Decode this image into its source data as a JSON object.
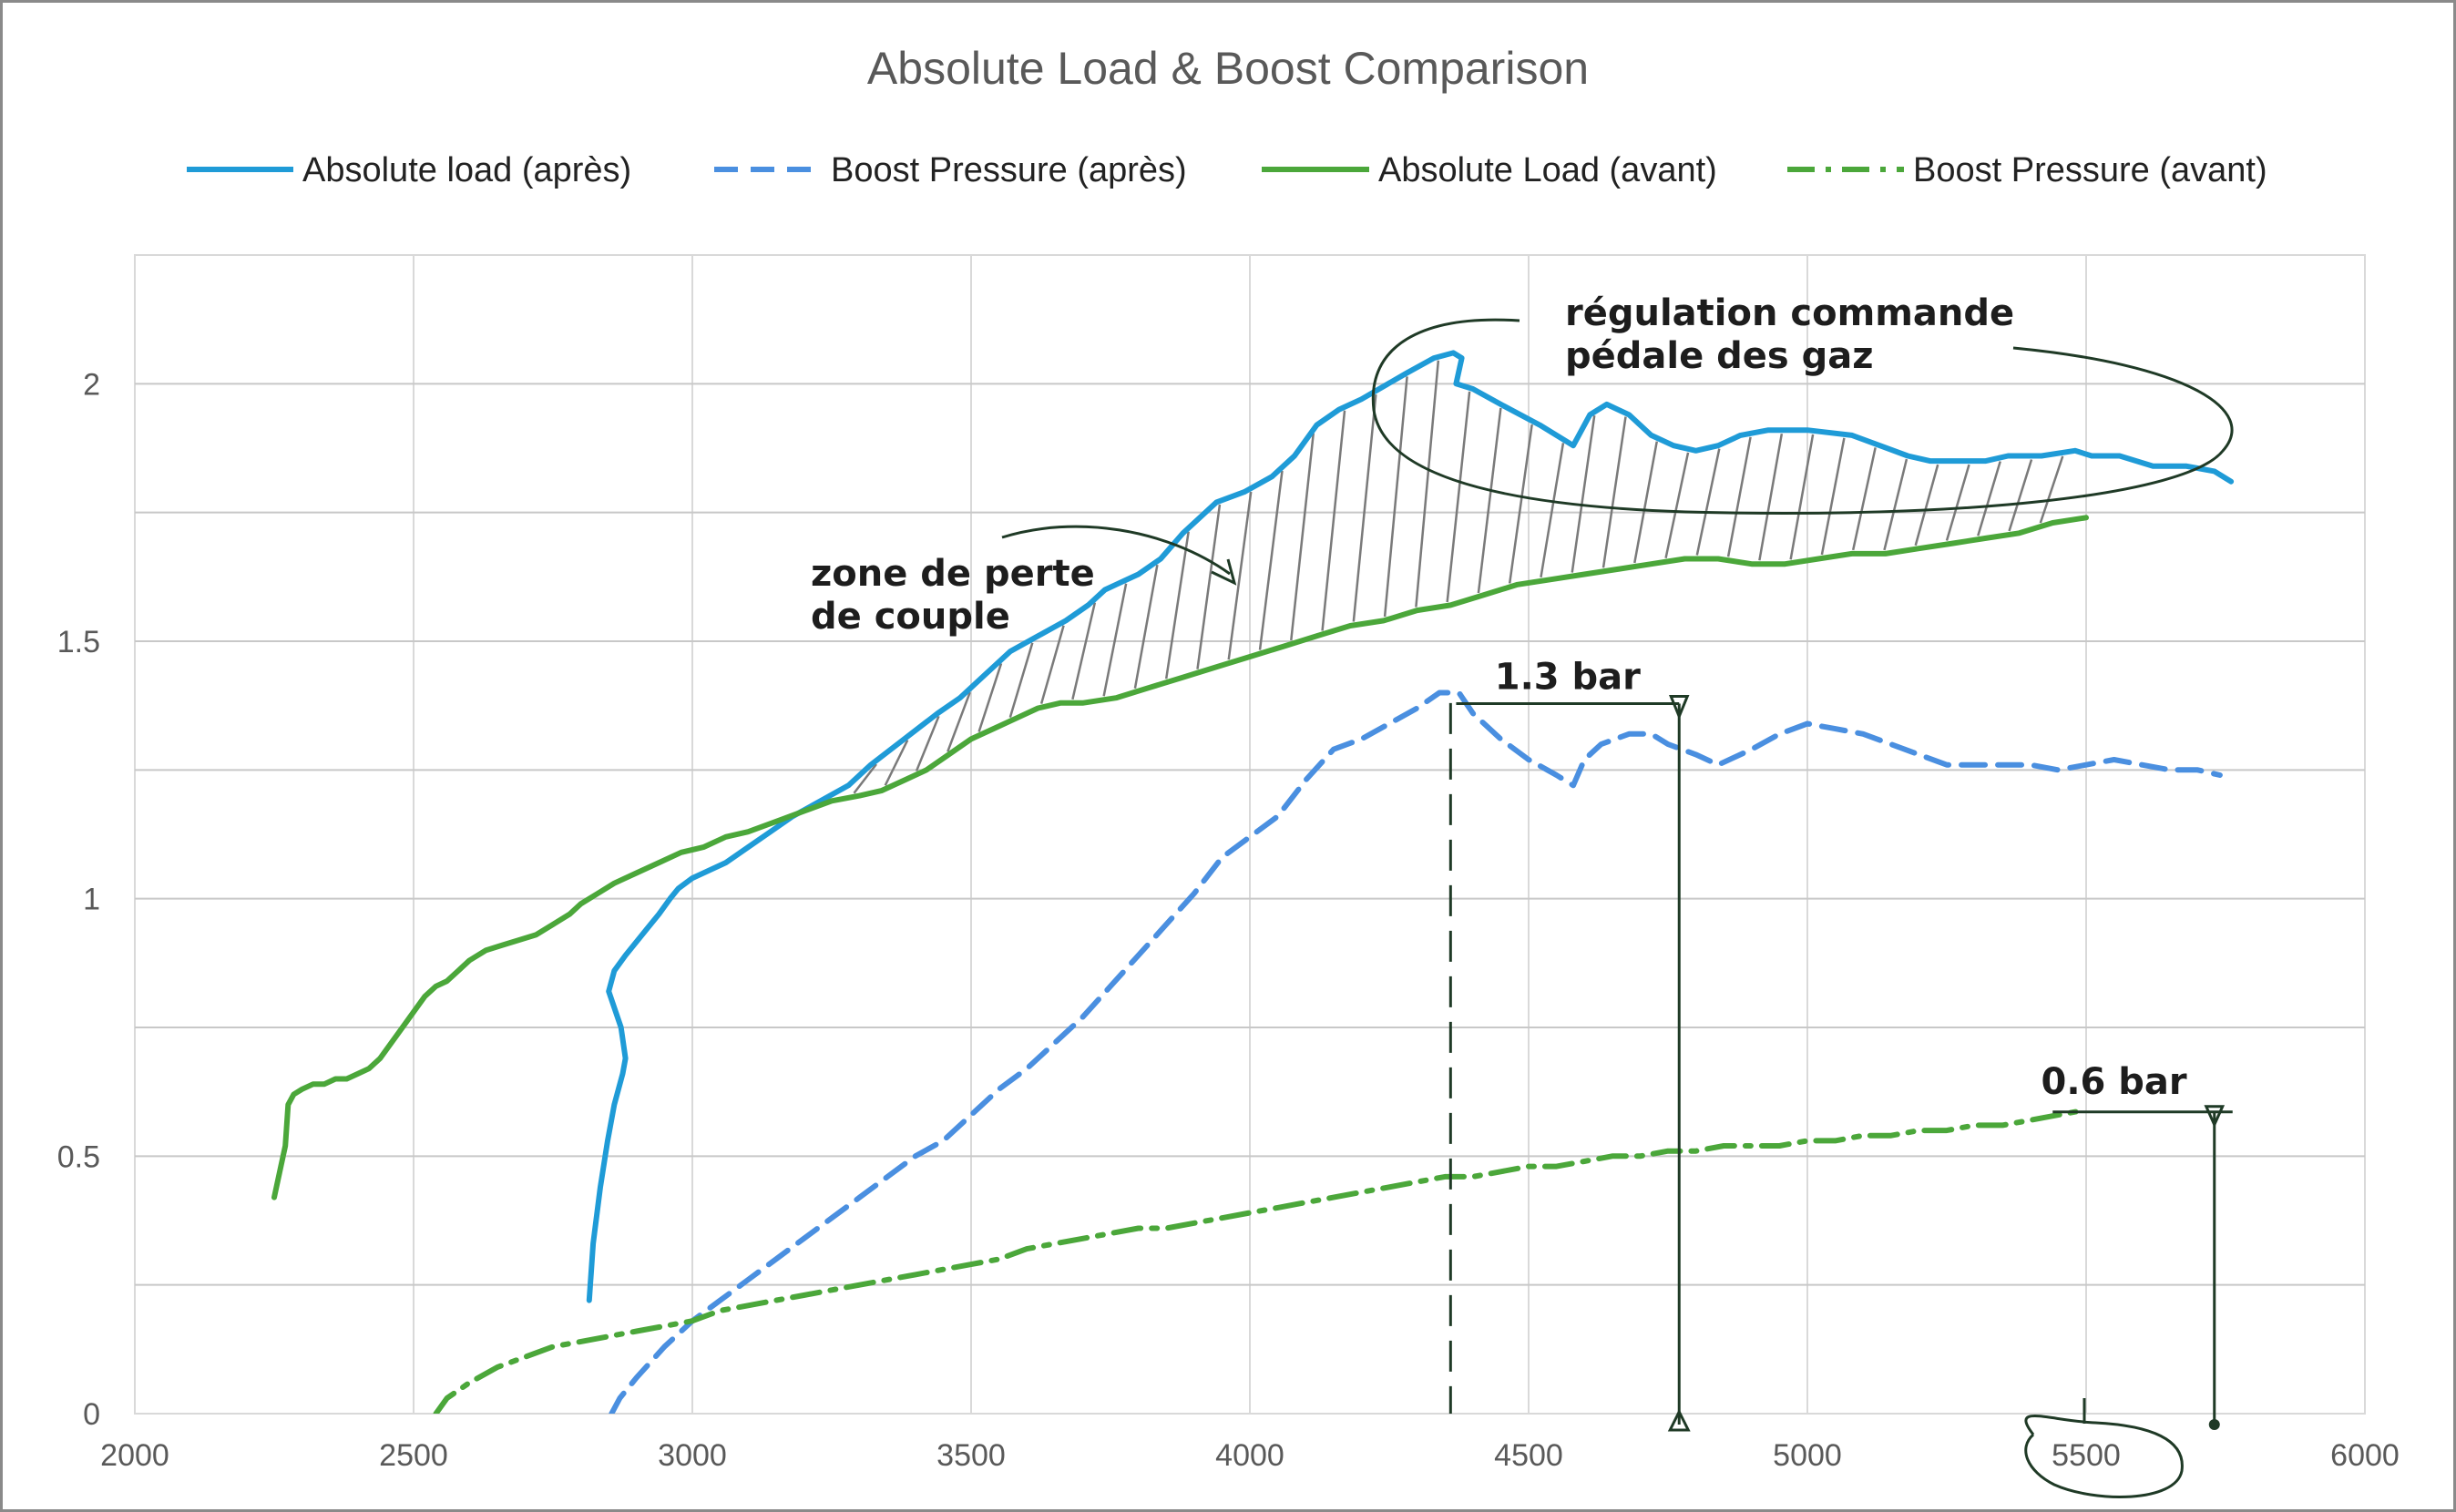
{
  "chart_data": {
    "type": "line",
    "title": "Absolute Load & Boost Comparison",
    "xlabel": "",
    "ylabel": "",
    "xlim": [
      2000,
      6000
    ],
    "ylim": [
      0,
      2.25
    ],
    "x_ticks": [
      2000,
      2500,
      3000,
      3500,
      4000,
      4500,
      5000,
      5500,
      6000
    ],
    "y_ticks": [
      0,
      0.5,
      1,
      1.5,
      2
    ],
    "grid": true,
    "legend_position": "top",
    "series": [
      {
        "name": "Absolute load (après)",
        "color": "#1f9bd7",
        "style": "solid",
        "x": [
          2815,
          2822,
          2835,
          2848,
          2860,
          2875,
          2880,
          2872,
          2850,
          2860,
          2880,
          2910,
          2940,
          2960,
          2975,
          3000,
          3060,
          3100,
          3140,
          3180,
          3230,
          3280,
          3320,
          3380,
          3440,
          3480,
          3520,
          3570,
          3620,
          3670,
          3710,
          3740,
          3760,
          3800,
          3840,
          3880,
          3940,
          3990,
          4040,
          4080,
          4120,
          4160,
          4200,
          4280,
          4330,
          4365,
          4380,
          4370,
          4400,
          4450,
          4520,
          4580,
          4610,
          4640,
          4680,
          4720,
          4760,
          4800,
          4840,
          4880,
          4930,
          5000,
          5080,
          5130,
          5180,
          5220,
          5280,
          5320,
          5360,
          5420,
          5480,
          5510,
          5560,
          5620,
          5680,
          5730,
          5760
        ],
        "values": [
          0.22,
          0.33,
          0.44,
          0.53,
          0.6,
          0.66,
          0.69,
          0.75,
          0.82,
          0.86,
          0.89,
          0.93,
          0.97,
          1.0,
          1.02,
          1.04,
          1.07,
          1.1,
          1.13,
          1.16,
          1.19,
          1.22,
          1.26,
          1.31,
          1.36,
          1.39,
          1.43,
          1.48,
          1.51,
          1.54,
          1.57,
          1.6,
          1.61,
          1.63,
          1.66,
          1.71,
          1.77,
          1.79,
          1.82,
          1.86,
          1.92,
          1.95,
          1.97,
          2.02,
          2.05,
          2.06,
          2.05,
          2.0,
          1.99,
          1.96,
          1.92,
          1.88,
          1.94,
          1.96,
          1.94,
          1.9,
          1.88,
          1.87,
          1.88,
          1.9,
          1.91,
          1.91,
          1.9,
          1.88,
          1.86,
          1.85,
          1.85,
          1.85,
          1.86,
          1.86,
          1.87,
          1.86,
          1.86,
          1.84,
          1.84,
          1.83,
          1.81
        ]
      },
      {
        "name": "Boost Pressure (après)",
        "color": "#4a8fe0",
        "style": "dashed",
        "x": [
          2855,
          2870,
          2900,
          2950,
          3000,
          3050,
          3100,
          3150,
          3200,
          3250,
          3300,
          3350,
          3400,
          3450,
          3500,
          3550,
          3600,
          3650,
          3700,
          3750,
          3800,
          3850,
          3900,
          3950,
          4000,
          4050,
          4100,
          4150,
          4200,
          4250,
          4300,
          4340,
          4375,
          4400,
          4450,
          4500,
          4550,
          4580,
          4600,
          4630,
          4680,
          4720,
          4750,
          4800,
          4840,
          4900,
          4950,
          5000,
          5050,
          5100,
          5150,
          5200,
          5250,
          5300,
          5350,
          5400,
          5450,
          5500,
          5550,
          5600,
          5650,
          5700,
          5740
        ],
        "values": [
          0.0,
          0.03,
          0.07,
          0.13,
          0.18,
          0.22,
          0.26,
          0.3,
          0.34,
          0.38,
          0.42,
          0.46,
          0.5,
          0.53,
          0.58,
          0.63,
          0.67,
          0.72,
          0.77,
          0.83,
          0.89,
          0.95,
          1.01,
          1.08,
          1.12,
          1.16,
          1.23,
          1.29,
          1.31,
          1.34,
          1.37,
          1.4,
          1.4,
          1.36,
          1.31,
          1.27,
          1.24,
          1.22,
          1.27,
          1.3,
          1.32,
          1.32,
          1.3,
          1.28,
          1.26,
          1.29,
          1.32,
          1.34,
          1.33,
          1.32,
          1.3,
          1.28,
          1.26,
          1.26,
          1.26,
          1.26,
          1.25,
          1.26,
          1.27,
          1.26,
          1.25,
          1.25,
          1.24
        ]
      },
      {
        "name": "Absolute Load (avant)",
        "color": "#4ba73a",
        "style": "solid",
        "x": [
          2250,
          2262,
          2270,
          2275,
          2285,
          2300,
          2320,
          2340,
          2360,
          2380,
          2400,
          2420,
          2440,
          2460,
          2480,
          2500,
          2520,
          2540,
          2560,
          2580,
          2600,
          2630,
          2660,
          2690,
          2720,
          2750,
          2780,
          2800,
          2830,
          2860,
          2900,
          2940,
          2980,
          3020,
          3060,
          3100,
          3150,
          3200,
          3250,
          3300,
          3340,
          3380,
          3420,
          3460,
          3500,
          3540,
          3580,
          3620,
          3660,
          3700,
          3760,
          3820,
          3880,
          3940,
          4000,
          4060,
          4120,
          4180,
          4240,
          4300,
          4360,
          4420,
          4480,
          4540,
          4600,
          4660,
          4720,
          4780,
          4840,
          4900,
          4960,
          5020,
          5080,
          5140,
          5200,
          5260,
          5320,
          5380,
          5440,
          5500
        ],
        "values": [
          0.42,
          0.48,
          0.52,
          0.6,
          0.62,
          0.63,
          0.64,
          0.64,
          0.65,
          0.65,
          0.66,
          0.67,
          0.69,
          0.72,
          0.75,
          0.78,
          0.81,
          0.83,
          0.84,
          0.86,
          0.88,
          0.9,
          0.91,
          0.92,
          0.93,
          0.95,
          0.97,
          0.99,
          1.01,
          1.03,
          1.05,
          1.07,
          1.09,
          1.1,
          1.12,
          1.13,
          1.15,
          1.17,
          1.19,
          1.2,
          1.21,
          1.23,
          1.25,
          1.28,
          1.31,
          1.33,
          1.35,
          1.37,
          1.38,
          1.38,
          1.39,
          1.41,
          1.43,
          1.45,
          1.47,
          1.49,
          1.51,
          1.53,
          1.54,
          1.56,
          1.57,
          1.59,
          1.61,
          1.62,
          1.63,
          1.64,
          1.65,
          1.66,
          1.66,
          1.65,
          1.65,
          1.66,
          1.67,
          1.67,
          1.68,
          1.69,
          1.7,
          1.71,
          1.73,
          1.74
        ]
      },
      {
        "name": "Boost Pressure (avant)",
        "color": "#4ba73a",
        "style": "dashdot",
        "x": [
          2540,
          2560,
          2600,
          2650,
          2700,
          2750,
          2800,
          2850,
          2900,
          2950,
          3000,
          3050,
          3100,
          3150,
          3200,
          3250,
          3300,
          3350,
          3400,
          3450,
          3500,
          3550,
          3600,
          3650,
          3700,
          3750,
          3800,
          3850,
          3900,
          3950,
          4000,
          4050,
          4100,
          4150,
          4200,
          4250,
          4300,
          4350,
          4400,
          4450,
          4500,
          4550,
          4600,
          4650,
          4700,
          4750,
          4800,
          4850,
          4900,
          4950,
          5000,
          5050,
          5100,
          5150,
          5200,
          5250,
          5300,
          5350,
          5400,
          5450,
          5500
        ],
        "values": [
          0.0,
          0.03,
          0.06,
          0.09,
          0.11,
          0.13,
          0.14,
          0.15,
          0.16,
          0.17,
          0.18,
          0.2,
          0.21,
          0.22,
          0.23,
          0.24,
          0.25,
          0.26,
          0.27,
          0.28,
          0.29,
          0.3,
          0.32,
          0.33,
          0.34,
          0.35,
          0.36,
          0.36,
          0.37,
          0.38,
          0.39,
          0.4,
          0.41,
          0.42,
          0.43,
          0.44,
          0.45,
          0.46,
          0.46,
          0.47,
          0.48,
          0.48,
          0.49,
          0.5,
          0.5,
          0.51,
          0.51,
          0.52,
          0.52,
          0.52,
          0.53,
          0.53,
          0.54,
          0.54,
          0.55,
          0.55,
          0.56,
          0.56,
          0.57,
          0.58,
          0.59
        ]
      }
    ],
    "annotations": {
      "torque_loss": {
        "line1": "zone de perte",
        "line2": "de couple"
      },
      "pedal_regulation": {
        "line1": "régulation commande",
        "line2": "pédale des gaz"
      },
      "boost_after": {
        "label": "1.3 bar",
        "x": 4770,
        "y_from": 0,
        "y_to": 1.4
      },
      "boost_before": {
        "label": "0.6 bar",
        "x": 5730,
        "y_from": 0,
        "y_to": 0.6
      },
      "marker_x": 4360
    }
  }
}
